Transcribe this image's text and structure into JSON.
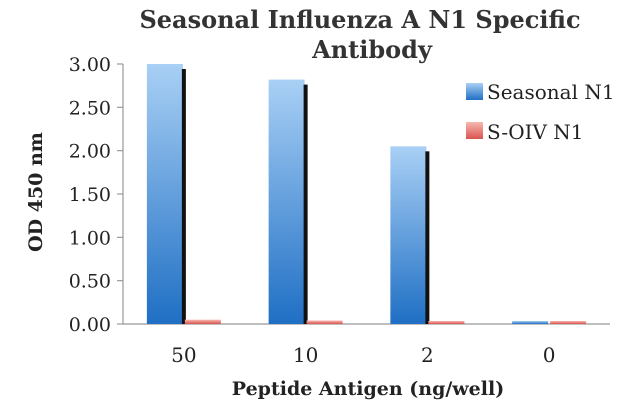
{
  "chart_data": {
    "type": "bar",
    "title": [
      "Seasonal Influenza A N1 Specific",
      "Antibody"
    ],
    "xlabel": "Peptide Antigen (ng/well)",
    "ylabel": "OD 450 nm",
    "categories": [
      "50",
      "10",
      "2",
      "0"
    ],
    "ylim": [
      0,
      3
    ],
    "yticks": [
      "0.00",
      "0.50",
      "1.00",
      "1.50",
      "2.00",
      "2.50",
      "3.00"
    ],
    "series": [
      {
        "name": "Seasonal N1",
        "values": [
          3.0,
          2.82,
          2.05,
          0.03
        ],
        "color": "#4d9be0",
        "color_light": "#a9d0f5",
        "color_dark": "#1f6fc4"
      },
      {
        "name": "S-OIV N1",
        "values": [
          0.05,
          0.04,
          0.03,
          0.03
        ],
        "color": "#ec7a6e",
        "color_light": "#f7b9b0",
        "color_dark": "#d9534f"
      }
    ],
    "legend_position": "right",
    "grid": false
  }
}
